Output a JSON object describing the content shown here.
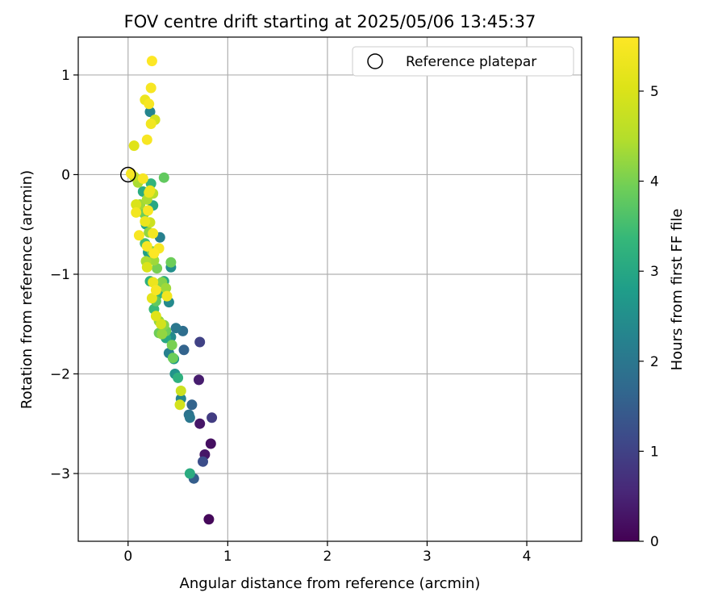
{
  "chart_data": {
    "type": "scatter",
    "title": "FOV centre drift starting at 2025/05/06 13:45:37",
    "xlabel": "Angular distance from reference (arcmin)",
    "ylabel": "Rotation from reference (arcmin)",
    "xlim": [
      -0.5,
      4.55
    ],
    "ylim": [
      -3.68,
      1.38
    ],
    "xticks": [
      0,
      1,
      2,
      3,
      4
    ],
    "yticks": [
      -3,
      -2,
      -1,
      0,
      1
    ],
    "xtick_labels": [
      "0",
      "1",
      "2",
      "3",
      "4"
    ],
    "ytick_labels": [
      "−3",
      "−2",
      "−1",
      "0",
      "1"
    ],
    "grid": true,
    "legend": {
      "location": "top-right",
      "entries": [
        "Reference platepar"
      ]
    },
    "reference_point": {
      "x": 0,
      "y": 0,
      "label": "Reference platepar"
    },
    "colorbar": {
      "label": "Hours from first FF file",
      "colormap": "viridis",
      "range": [
        0,
        5.6
      ],
      "ticks": [
        0,
        1,
        2,
        3,
        4,
        5
      ],
      "tick_labels": [
        "0",
        "1",
        "2",
        "3",
        "4",
        "5"
      ]
    },
    "points": [
      {
        "x": 0.81,
        "y": -3.46,
        "h": 0.1
      },
      {
        "x": 0.83,
        "y": -2.7,
        "h": 0.2
      },
      {
        "x": 0.77,
        "y": -2.81,
        "h": 0.3
      },
      {
        "x": 0.72,
        "y": -2.5,
        "h": 0.3
      },
      {
        "x": 0.71,
        "y": -2.06,
        "h": 0.4
      },
      {
        "x": 0.84,
        "y": -2.44,
        "h": 0.9
      },
      {
        "x": 0.72,
        "y": -1.68,
        "h": 1.0
      },
      {
        "x": 0.75,
        "y": -2.88,
        "h": 1.2
      },
      {
        "x": 0.66,
        "y": -3.05,
        "h": 1.5
      },
      {
        "x": 0.64,
        "y": -2.31,
        "h": 1.6
      },
      {
        "x": 0.61,
        "y": -2.41,
        "h": 1.9
      },
      {
        "x": 0.62,
        "y": -2.44,
        "h": 2.0
      },
      {
        "x": 0.56,
        "y": -1.76,
        "h": 1.6
      },
      {
        "x": 0.55,
        "y": -1.57,
        "h": 1.8
      },
      {
        "x": 0.48,
        "y": -1.54,
        "h": 2.0
      },
      {
        "x": 0.53,
        "y": -2.25,
        "h": 2.3
      },
      {
        "x": 0.47,
        "y": -2.0,
        "h": 2.6
      },
      {
        "x": 0.46,
        "y": -1.85,
        "h": 2.7
      },
      {
        "x": 0.41,
        "y": -1.79,
        "h": 2.2
      },
      {
        "x": 0.43,
        "y": -1.63,
        "h": 2.4
      },
      {
        "x": 0.41,
        "y": -1.28,
        "h": 2.4
      },
      {
        "x": 0.43,
        "y": -0.93,
        "h": 2.5
      },
      {
        "x": 0.32,
        "y": -0.63,
        "h": 2.2
      },
      {
        "x": 0.22,
        "y": 0.63,
        "h": 2.3
      },
      {
        "x": 0.62,
        "y": -3.0,
        "h": 3.1
      },
      {
        "x": 0.5,
        "y": -2.04,
        "h": 3.2
      },
      {
        "x": 0.38,
        "y": -1.64,
        "h": 3.0
      },
      {
        "x": 0.36,
        "y": -1.07,
        "h": 3.1
      },
      {
        "x": 0.3,
        "y": -1.2,
        "h": 3.3
      },
      {
        "x": 0.26,
        "y": -1.35,
        "h": 3.4
      },
      {
        "x": 0.22,
        "y": -1.07,
        "h": 3.2
      },
      {
        "x": 0.2,
        "y": -0.78,
        "h": 2.8
      },
      {
        "x": 0.18,
        "y": -0.5,
        "h": 3.0
      },
      {
        "x": 0.25,
        "y": -0.31,
        "h": 3.0
      },
      {
        "x": 0.23,
        "y": -0.09,
        "h": 3.3
      },
      {
        "x": 0.15,
        "y": -0.17,
        "h": 3.1
      },
      {
        "x": 0.17,
        "y": -0.69,
        "h": 3.5
      },
      {
        "x": 0.43,
        "y": -0.88,
        "h": 3.9
      },
      {
        "x": 0.36,
        "y": -0.03,
        "h": 3.8
      },
      {
        "x": 0.45,
        "y": -1.84,
        "h": 3.9
      },
      {
        "x": 0.44,
        "y": -1.71,
        "h": 4.0
      },
      {
        "x": 0.38,
        "y": -1.57,
        "h": 3.9
      },
      {
        "x": 0.36,
        "y": -1.51,
        "h": 4.1
      },
      {
        "x": 0.34,
        "y": -1.6,
        "h": 4.2
      },
      {
        "x": 0.31,
        "y": -1.59,
        "h": 3.9
      },
      {
        "x": 0.31,
        "y": -1.47,
        "h": 4.2
      },
      {
        "x": 0.28,
        "y": -1.27,
        "h": 3.8
      },
      {
        "x": 0.34,
        "y": -1.08,
        "h": 4.1
      },
      {
        "x": 0.38,
        "y": -1.14,
        "h": 4.3
      },
      {
        "x": 0.29,
        "y": -0.94,
        "h": 4.0
      },
      {
        "x": 0.26,
        "y": -0.86,
        "h": 4.3
      },
      {
        "x": 0.24,
        "y": -0.77,
        "h": 4.0
      },
      {
        "x": 0.18,
        "y": -0.87,
        "h": 4.4
      },
      {
        "x": 0.21,
        "y": -0.58,
        "h": 4.2
      },
      {
        "x": 0.16,
        "y": -0.39,
        "h": 3.9
      },
      {
        "x": 0.12,
        "y": -0.3,
        "h": 4.3
      },
      {
        "x": 0.19,
        "y": -0.25,
        "h": 4.4
      },
      {
        "x": 0.25,
        "y": -0.19,
        "h": 4.5
      },
      {
        "x": 0.1,
        "y": -0.08,
        "h": 4.4
      },
      {
        "x": 0.06,
        "y": -0.02,
        "h": 4.6
      },
      {
        "x": 0.53,
        "y": -2.17,
        "h": 4.8
      },
      {
        "x": 0.52,
        "y": -2.31,
        "h": 4.9
      },
      {
        "x": 0.22,
        "y": -0.48,
        "h": 4.8
      },
      {
        "x": 0.27,
        "y": 0.55,
        "h": 4.9
      },
      {
        "x": 0.19,
        "y": -0.93,
        "h": 5.0
      },
      {
        "x": 0.28,
        "y": -1.42,
        "h": 5.1
      },
      {
        "x": 0.24,
        "y": -1.24,
        "h": 5.2
      },
      {
        "x": 0.33,
        "y": -1.5,
        "h": 4.9
      },
      {
        "x": 0.06,
        "y": 0.29,
        "h": 5.1
      },
      {
        "x": 0.08,
        "y": -0.3,
        "h": 5.0
      },
      {
        "x": 0.21,
        "y": -0.18,
        "h": 5.3
      },
      {
        "x": 0.39,
        "y": -1.22,
        "h": 5.4
      },
      {
        "x": 0.28,
        "y": -1.16,
        "h": 5.5
      },
      {
        "x": 0.25,
        "y": -1.08,
        "h": 5.3
      },
      {
        "x": 0.31,
        "y": -0.74,
        "h": 5.5
      },
      {
        "x": 0.25,
        "y": -0.59,
        "h": 5.4
      },
      {
        "x": 0.19,
        "y": -0.72,
        "h": 5.5
      },
      {
        "x": 0.11,
        "y": -0.61,
        "h": 5.5
      },
      {
        "x": 0.17,
        "y": -0.47,
        "h": 5.3
      },
      {
        "x": 0.2,
        "y": -0.36,
        "h": 5.5
      },
      {
        "x": 0.08,
        "y": -0.38,
        "h": 5.4
      },
      {
        "x": 0.22,
        "y": -0.16,
        "h": 5.3
      },
      {
        "x": 0.15,
        "y": -0.04,
        "h": 5.5
      },
      {
        "x": 0.03,
        "y": 0.01,
        "h": 5.5
      },
      {
        "x": 0.17,
        "y": 0.75,
        "h": 5.3
      },
      {
        "x": 0.23,
        "y": 0.51,
        "h": 5.4
      },
      {
        "x": 0.21,
        "y": 0.71,
        "h": 5.5
      },
      {
        "x": 0.23,
        "y": 0.87,
        "h": 5.5
      },
      {
        "x": 0.24,
        "y": 1.14,
        "h": 5.6
      },
      {
        "x": 0.19,
        "y": 0.35,
        "h": 5.5
      },
      {
        "x": 0.26,
        "y": -0.79,
        "h": 5.6
      }
    ]
  }
}
